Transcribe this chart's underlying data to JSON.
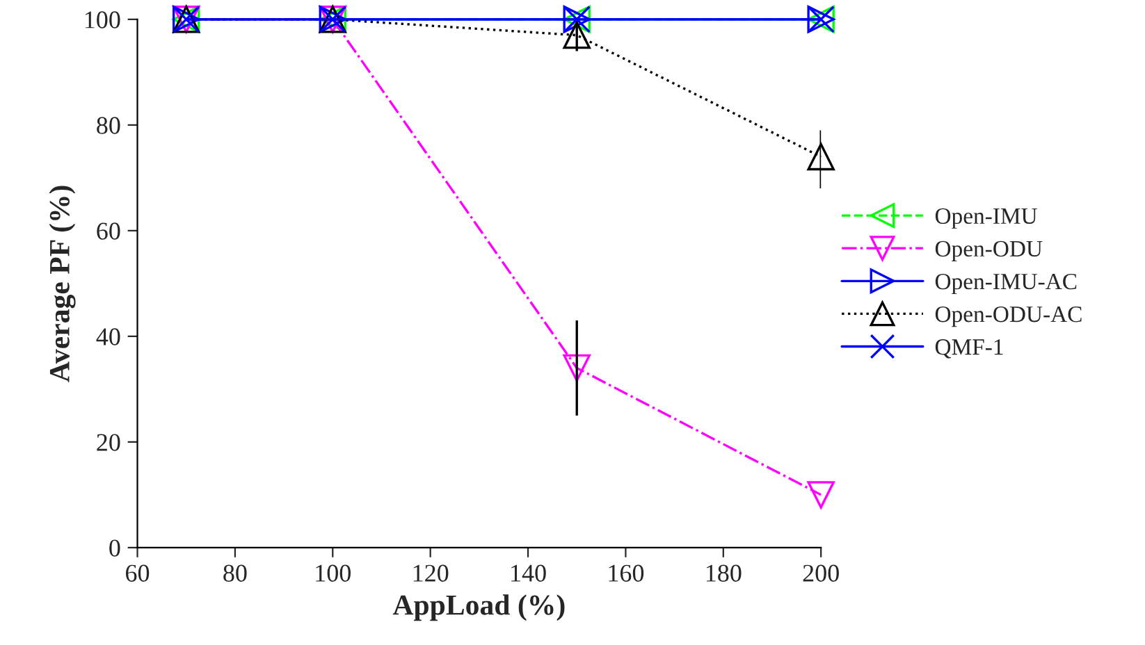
{
  "chart_data": {
    "type": "line",
    "xlabel": "AppLoad (%)",
    "ylabel": "Average PF (%)",
    "x": [
      70,
      100,
      150,
      200
    ],
    "xlim": [
      60,
      200
    ],
    "xticks": [
      60,
      80,
      100,
      120,
      140,
      160,
      180,
      200
    ],
    "ylim": [
      0,
      100
    ],
    "yticks": [
      0,
      20,
      40,
      60,
      80,
      100
    ],
    "grid": false,
    "legend": "right",
    "series": [
      {
        "name": "Open-IMU",
        "color": "#00ff00",
        "values": [
          100,
          100,
          100,
          100
        ],
        "marker": "triangle-left",
        "line_style": "dashed"
      },
      {
        "name": "Open-ODU",
        "color": "#ff00ff",
        "values": [
          100,
          100,
          34,
          10
        ],
        "errors": [
          null,
          null,
          [
            25,
            43
          ],
          null
        ],
        "marker": "triangle-down",
        "line_style": "dashdot"
      },
      {
        "name": "Open-IMU-AC",
        "color": "#0000ff",
        "values": [
          100,
          100,
          100,
          100
        ],
        "marker": "triangle-right",
        "line_style": "solid"
      },
      {
        "name": "Open-ODU-AC",
        "color": "#000000",
        "values": [
          100,
          100,
          97,
          74
        ],
        "errors": [
          null,
          null,
          [
            94,
            100
          ],
          [
            68,
            79
          ]
        ],
        "marker": "triangle",
        "line_style": "dotted"
      },
      {
        "name": "QMF-1",
        "color": "#0000ff",
        "values": [
          100,
          100,
          100,
          100
        ],
        "marker": "cross",
        "line_style": "solid"
      }
    ]
  }
}
